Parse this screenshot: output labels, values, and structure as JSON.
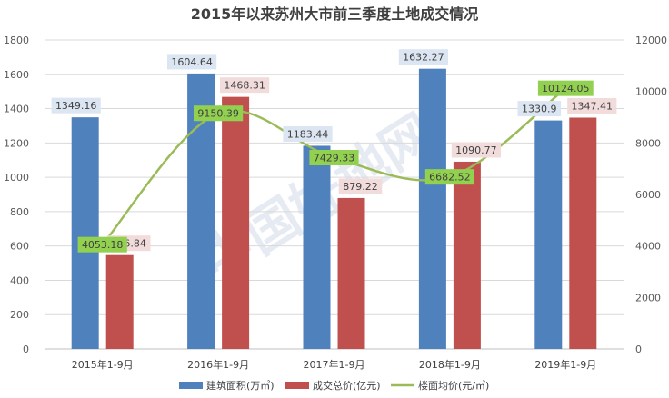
{
  "chart_data": {
    "type": "bar",
    "title": "2015年以来苏州大市前三季度土地成交情况",
    "categories": [
      "2015年1-9月",
      "2016年1-9月",
      "2017年1-9月",
      "2018年1-9月",
      "2019年1-9月"
    ],
    "series": [
      {
        "name": "建筑面积(万㎡)",
        "type": "bar",
        "axis": "left",
        "color": "#4f81bd",
        "label_bg": "#dce6f2",
        "values": [
          1349.16,
          1604.64,
          1183.44,
          1632.27,
          1330.9
        ],
        "labels": [
          "1349.16",
          "1604.64",
          "1183.44",
          "1632.27",
          "1330.9"
        ]
      },
      {
        "name": "成交总价(亿元)",
        "type": "bar",
        "axis": "left",
        "color": "#c0504d",
        "label_bg": "#f2dcdb",
        "values": [
          546.84,
          1468.31,
          879.22,
          1090.77,
          1347.41
        ],
        "labels": [
          "546.84",
          "1468.31",
          "879.22",
          "1090.77",
          "1347.41"
        ]
      },
      {
        "name": "楼面均价(元/㎡)",
        "type": "line",
        "axis": "right",
        "color": "#9bbb59",
        "label_bg": "#92d050",
        "values": [
          4053.18,
          9150.39,
          7429.33,
          6682.52,
          10124.05
        ],
        "labels": [
          "4053.18",
          "9150.39",
          "7429.33",
          "6682.52",
          "10124.05"
        ]
      }
    ],
    "y_left": {
      "min": 0,
      "max": 1800,
      "ticks": [
        "0",
        "200",
        "400",
        "600",
        "800",
        "1000",
        "1200",
        "1400",
        "1600",
        "1800"
      ]
    },
    "y_right": {
      "min": 0,
      "max": 12000,
      "ticks": [
        "0",
        "2000",
        "4000",
        "6000",
        "8000",
        "10000",
        "12000"
      ]
    },
    "grid": true,
    "legend_position": "bottom",
    "watermark": "中国好地网"
  }
}
